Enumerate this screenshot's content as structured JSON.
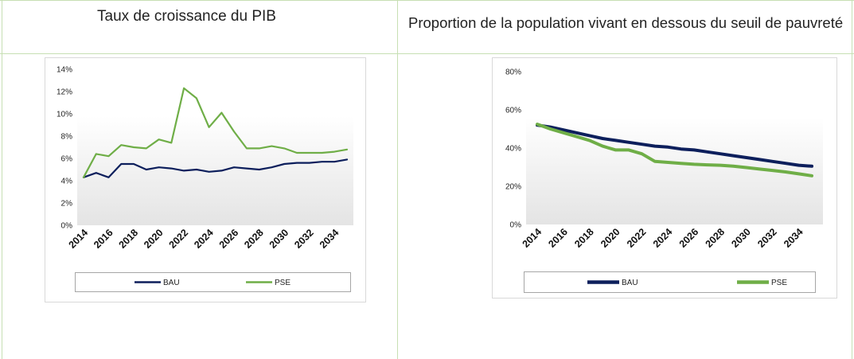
{
  "headers": {
    "left": "Taux de croissance du PIB",
    "right": "Proportion de la population vivant en dessous du seuil de pauvreté"
  },
  "colors": {
    "BAU": "#0d1f5c",
    "PSE": "#6fae47",
    "grid_border": "#c7dfb3"
  },
  "chart_data": [
    {
      "type": "line",
      "title": "",
      "x": [
        2014,
        2015,
        2016,
        2017,
        2018,
        2019,
        2020,
        2021,
        2022,
        2023,
        2024,
        2025,
        2026,
        2027,
        2028,
        2029,
        2030,
        2031,
        2032,
        2033,
        2034,
        2035
      ],
      "x_tick_labels": [
        "2014",
        "2016",
        "2018",
        "2020",
        "2022",
        "2024",
        "2026",
        "2028",
        "2030",
        "2032",
        "2034"
      ],
      "y_tick_labels": [
        "0%",
        "2%",
        "4%",
        "6%",
        "8%",
        "10%",
        "12%",
        "14%"
      ],
      "ylim": [
        0,
        14
      ],
      "legend_position": "bottom",
      "series": [
        {
          "name": "BAU",
          "values": [
            4.3,
            4.7,
            4.3,
            5.5,
            5.5,
            5.0,
            5.2,
            5.1,
            4.9,
            5.0,
            4.8,
            4.9,
            5.2,
            5.1,
            5.0,
            5.2,
            5.5,
            5.6,
            5.6,
            5.7,
            5.7,
            5.9
          ]
        },
        {
          "name": "PSE",
          "values": [
            4.3,
            6.4,
            6.2,
            7.2,
            7.0,
            6.9,
            7.7,
            7.4,
            12.3,
            11.4,
            8.8,
            10.1,
            8.4,
            6.9,
            6.9,
            7.1,
            6.9,
            6.5,
            6.5,
            6.5,
            6.6,
            6.8
          ]
        }
      ]
    },
    {
      "type": "line",
      "title": "",
      "x": [
        2014,
        2015,
        2016,
        2017,
        2018,
        2019,
        2020,
        2021,
        2022,
        2023,
        2024,
        2025,
        2026,
        2027,
        2028,
        2029,
        2030,
        2031,
        2032,
        2033,
        2034,
        2035
      ],
      "x_tick_labels": [
        "2014",
        "2016",
        "2018",
        "2020",
        "2022",
        "2024",
        "2026",
        "2028",
        "2030",
        "2032",
        "2034"
      ],
      "y_tick_labels": [
        "0%",
        "20%",
        "40%",
        "60%",
        "80%"
      ],
      "ylim": [
        0,
        80
      ],
      "legend_position": "bottom",
      "series": [
        {
          "name": "BAU",
          "values": [
            52,
            51,
            49.5,
            48,
            46.5,
            45,
            44,
            43,
            42,
            41,
            40.5,
            39.5,
            39,
            38,
            37,
            36,
            35,
            34,
            33,
            32,
            31,
            30.5
          ]
        },
        {
          "name": "PSE",
          "values": [
            52.5,
            50,
            48,
            46,
            44,
            41,
            39,
            39,
            37,
            33,
            32.5,
            32,
            31.5,
            31.2,
            31,
            30.5,
            29.8,
            29,
            28.3,
            27.5,
            26.5,
            25.5
          ]
        }
      ]
    }
  ]
}
